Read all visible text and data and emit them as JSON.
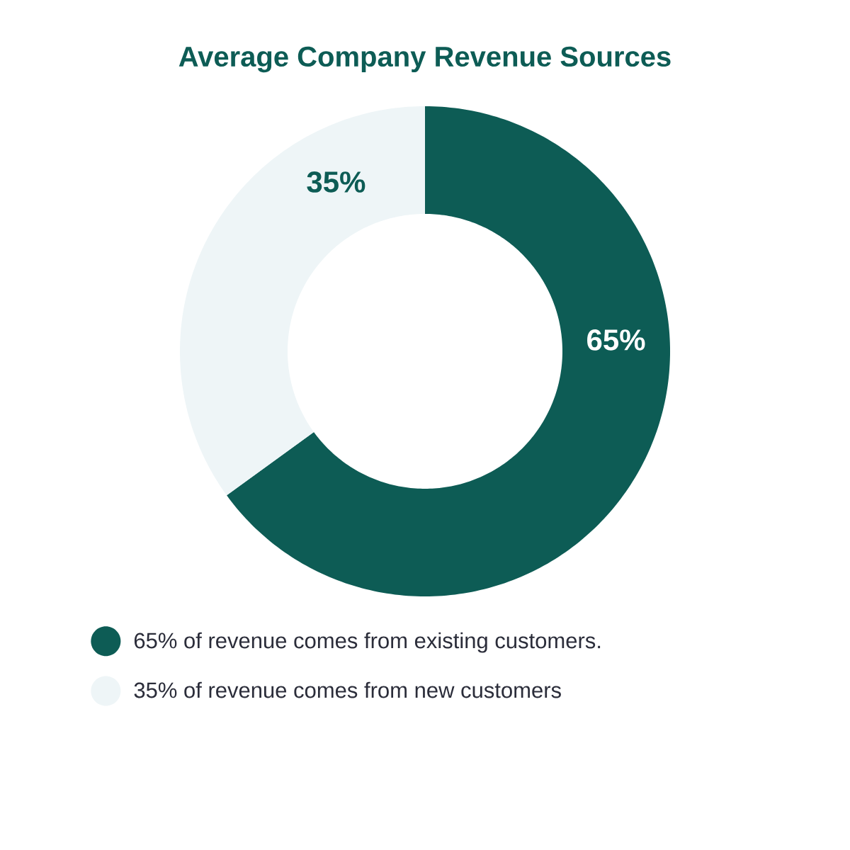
{
  "chart_data": {
    "type": "donut",
    "title": "Average Company Revenue Sources",
    "categories": [
      "65% of revenue comes from existing customers.",
      "35% of revenue comes from new customers"
    ],
    "values": [
      65,
      35
    ],
    "colors": [
      "#0d5c55",
      "#eef5f7"
    ],
    "value_labels": [
      "65%",
      "35%"
    ],
    "legend": "bottom"
  }
}
